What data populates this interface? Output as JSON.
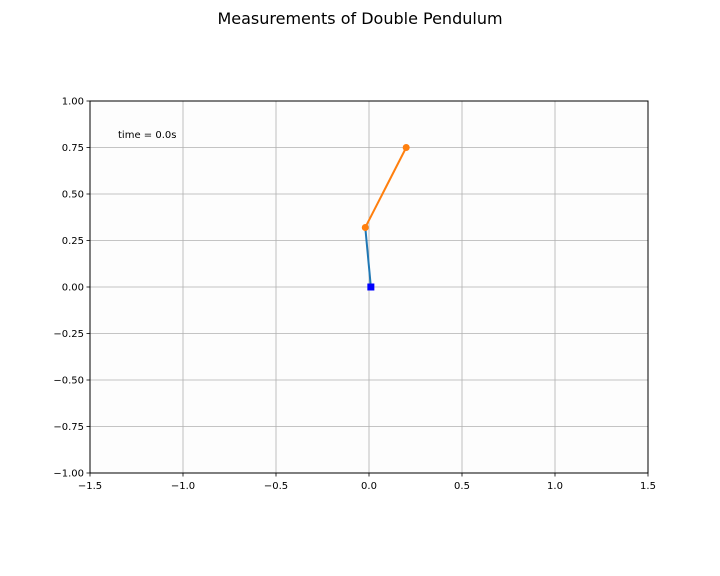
{
  "chart_data": {
    "type": "line",
    "title": "Measurements of Double Pendulum",
    "xlabel": "",
    "ylabel": "",
    "xlim": [
      -1.5,
      1.5
    ],
    "ylim": [
      -1.0,
      1.0
    ],
    "x_ticks": [
      -1.5,
      -1.0,
      -0.5,
      0.0,
      0.5,
      1.0,
      1.5
    ],
    "x_tick_labels": [
      "−1.5",
      "−1.0",
      "−0.5",
      "0.0",
      "0.5",
      "1.0",
      "1.5"
    ],
    "y_ticks": [
      1.0,
      0.75,
      0.5,
      0.25,
      0.0,
      -0.25,
      -0.5,
      -0.75,
      -1.0
    ],
    "y_tick_labels": [
      "1.00",
      "0.75",
      "0.50",
      "0.25",
      "0.00",
      "−0.25",
      "−0.50",
      "−0.75",
      "−1.00"
    ],
    "grid": true,
    "annotation": "time = 0.0s",
    "series": [
      {
        "color": "#1f77b4",
        "marker": "none",
        "x": [
          0.01,
          -0.02
        ],
        "y": [
          0.0,
          0.32
        ]
      },
      {
        "color": "#ff7f0e",
        "marker": "circle",
        "x": [
          -0.02,
          0.2
        ],
        "y": [
          0.32,
          0.75
        ]
      }
    ],
    "pivot": {
      "x": 0.01,
      "y": 0.0,
      "color": "#0000ff",
      "marker": "square"
    }
  }
}
